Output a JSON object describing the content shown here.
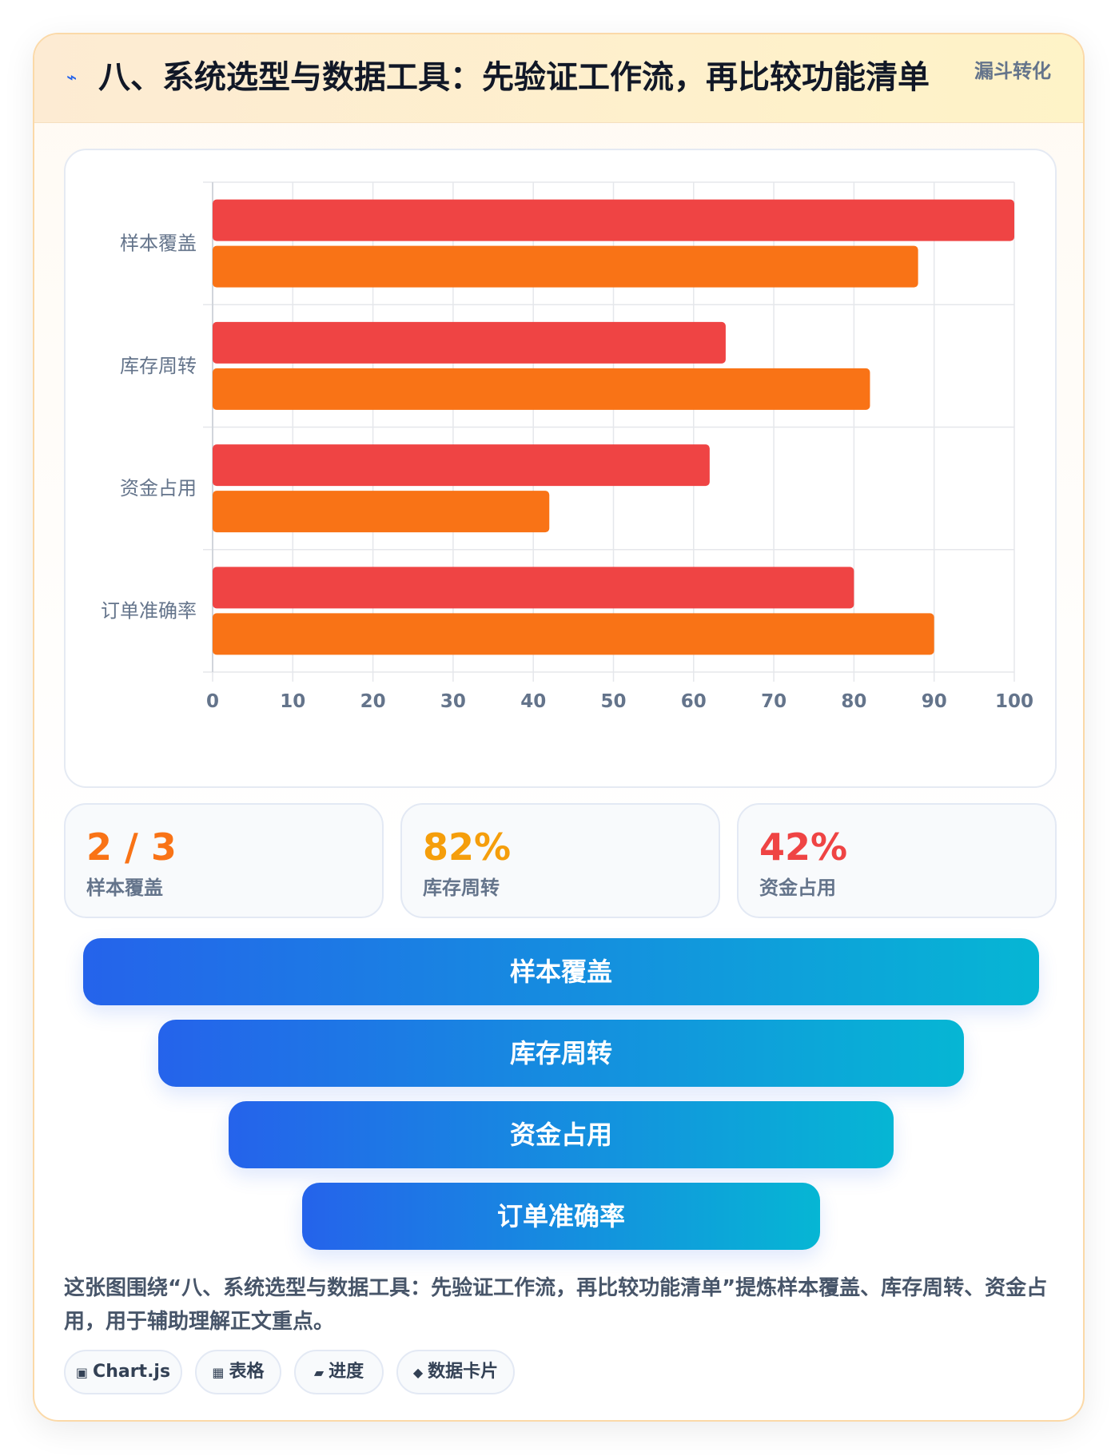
{
  "header": {
    "icon": "bolt-icon",
    "title": "八、系统选型与数据工具：先验证工作流，再比较功能清单",
    "tag": "漏斗转化"
  },
  "chart_data": {
    "type": "bar",
    "orientation": "horizontal",
    "categories": [
      "样本覆盖",
      "库存周转",
      "资金占用",
      "订单准确率"
    ],
    "series": [
      {
        "color": "#ef4444",
        "values": [
          100,
          64,
          62,
          80
        ]
      },
      {
        "color": "#f97316",
        "values": [
          88,
          82,
          42,
          90
        ]
      }
    ],
    "xlim": [
      0,
      100
    ],
    "xticks": [
      0,
      10,
      20,
      30,
      40,
      50,
      60,
      70,
      80,
      90,
      100
    ],
    "grid": true,
    "legend": "none"
  },
  "stats": [
    {
      "value": "2 / 3",
      "label": "样本覆盖",
      "color": "#f97316"
    },
    {
      "value": "82%",
      "label": "库存周转",
      "color": "#f59e0b"
    },
    {
      "value": "42%",
      "label": "资金占用",
      "color": "#ef4444"
    }
  ],
  "funnel": [
    "样本覆盖",
    "库存周转",
    "资金占用",
    "订单准确率"
  ],
  "description": "这张图围绕“八、系统选型与数据工具：先验证工作流，再比较功能清单”提炼样本覆盖、库存周转、资金占用，用于辅助理解正文重点。",
  "chips": [
    {
      "icon": "▣",
      "label": "Chart.js"
    },
    {
      "icon": "▦",
      "label": "表格"
    },
    {
      "icon": "▰",
      "label": "进度"
    },
    {
      "icon": "◆",
      "label": "数据卡片"
    }
  ]
}
